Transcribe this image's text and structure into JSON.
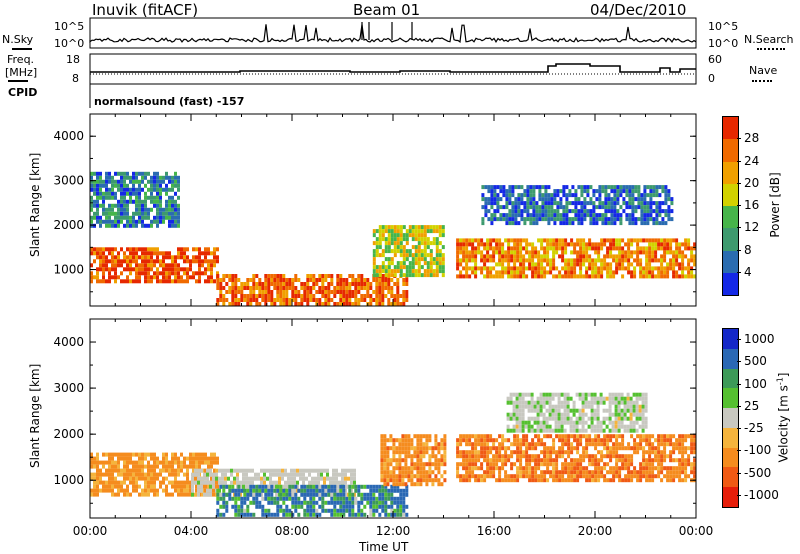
{
  "header": {
    "station": "Inuvik (fitACF)",
    "beam": "Beam 01",
    "date": "04/Dec/2010"
  },
  "top_panels": {
    "nsky_label": "N.Sky",
    "nsearch_label": "N.Search",
    "freq_label_line1": "Freq.",
    "freq_label_line2": "[MHz]",
    "nave_label": "Nave",
    "cpid_label": "CPID",
    "cpid_text": "normalsound (fast) -157",
    "noise_ticks_left": [
      "10^5",
      "10^0"
    ],
    "noise_ticks_right": [
      "10^5",
      "10^0"
    ],
    "freq_ticks_left": [
      "18",
      "8"
    ],
    "freq_ticks_right": [
      "60",
      "0"
    ]
  },
  "colors": {
    "axis": "#000000",
    "power": [
      "#1428e6",
      "#2a6cb0",
      "#3d9a6e",
      "#46b54a",
      "#d2d200",
      "#f0a000",
      "#f06a00",
      "#e62800"
    ],
    "velocity_pos": [
      "#1428c8",
      "#2a68b4",
      "#3c9a58",
      "#55c030"
    ],
    "velocity_neutral": "#c8c8c0",
    "velocity_neg": [
      "#f5b43c",
      "#f58c1e",
      "#f05a14",
      "#e61e0a"
    ]
  },
  "chart_data": [
    {
      "type": "heatmap",
      "title": "",
      "quantity": "Power",
      "xlabel": "Time UT",
      "ylabel": "Slant Range [km]",
      "colorbar_label": "Power [dB]",
      "xlim": [
        0,
        24
      ],
      "ylim": [
        180,
        4500
      ],
      "x_ticks": [
        "00:00",
        "04:00",
        "08:00",
        "12:00",
        "16:00",
        "20:00",
        "00:00"
      ],
      "y_ticks": [
        1000,
        2000,
        3000,
        4000
      ],
      "colorbar_ticks": [
        4,
        8,
        12,
        16,
        20,
        24,
        28
      ],
      "colorbar_range": [
        0,
        32
      ],
      "features": [
        {
          "desc": "strong band",
          "t0": 0.0,
          "t1": 5.0,
          "r0": 700,
          "r1": 1500,
          "value": 28
        },
        {
          "desc": "strong near range",
          "t0": 5.0,
          "t1": 12.5,
          "r0": 250,
          "r1": 900,
          "value": 26
        },
        {
          "desc": "mixed band",
          "t0": 11.2,
          "t1": 14.0,
          "r0": 900,
          "r1": 2000,
          "value": 18
        },
        {
          "desc": "strong band",
          "t0": 14.5,
          "t1": 24.0,
          "r0": 800,
          "r1": 1700,
          "value": 24
        },
        {
          "desc": "weak far range",
          "t0": 0.0,
          "t1": 3.5,
          "r0": 2000,
          "r1": 3200,
          "value": 8
        },
        {
          "desc": "weak far range",
          "t0": 15.5,
          "t1": 23.0,
          "r0": 2000,
          "r1": 2900,
          "value": 6
        }
      ]
    },
    {
      "type": "heatmap",
      "title": "",
      "quantity": "Velocity",
      "xlabel": "Time UT",
      "ylabel": "Slant Range [km]",
      "colorbar_label": "Velocity [m s^-1]",
      "xlim": [
        0,
        24
      ],
      "ylim": [
        180,
        4500
      ],
      "x_ticks": [
        "00:00",
        "04:00",
        "08:00",
        "12:00",
        "16:00",
        "20:00",
        "00:00"
      ],
      "y_ticks": [
        1000,
        2000,
        3000,
        4000
      ],
      "colorbar_ticks": [
        "1000",
        "500",
        "100",
        "25",
        "-25",
        "-100",
        "-500",
        "-1000"
      ],
      "features": [
        {
          "desc": "mixed band",
          "t0": 0.0,
          "t1": 5.0,
          "r0": 700,
          "r1": 1600,
          "value": -150
        },
        {
          "desc": "ground scatter",
          "t0": 4.0,
          "t1": 10.5,
          "r0": 700,
          "r1": 1250,
          "value": 0
        },
        {
          "desc": "positive near range",
          "t0": 5.0,
          "t1": 12.5,
          "r0": 250,
          "r1": 900,
          "value": 120
        },
        {
          "desc": "negative band",
          "t0": 11.5,
          "t1": 14.0,
          "r0": 900,
          "r1": 2000,
          "value": -200
        },
        {
          "desc": "negative band",
          "t0": 14.5,
          "t1": 24.0,
          "r0": 1000,
          "r1": 2000,
          "value": -250
        },
        {
          "desc": "slow far range",
          "t0": 16.5,
          "t1": 22.0,
          "r0": 2100,
          "r1": 2900,
          "value": 10
        }
      ]
    }
  ]
}
